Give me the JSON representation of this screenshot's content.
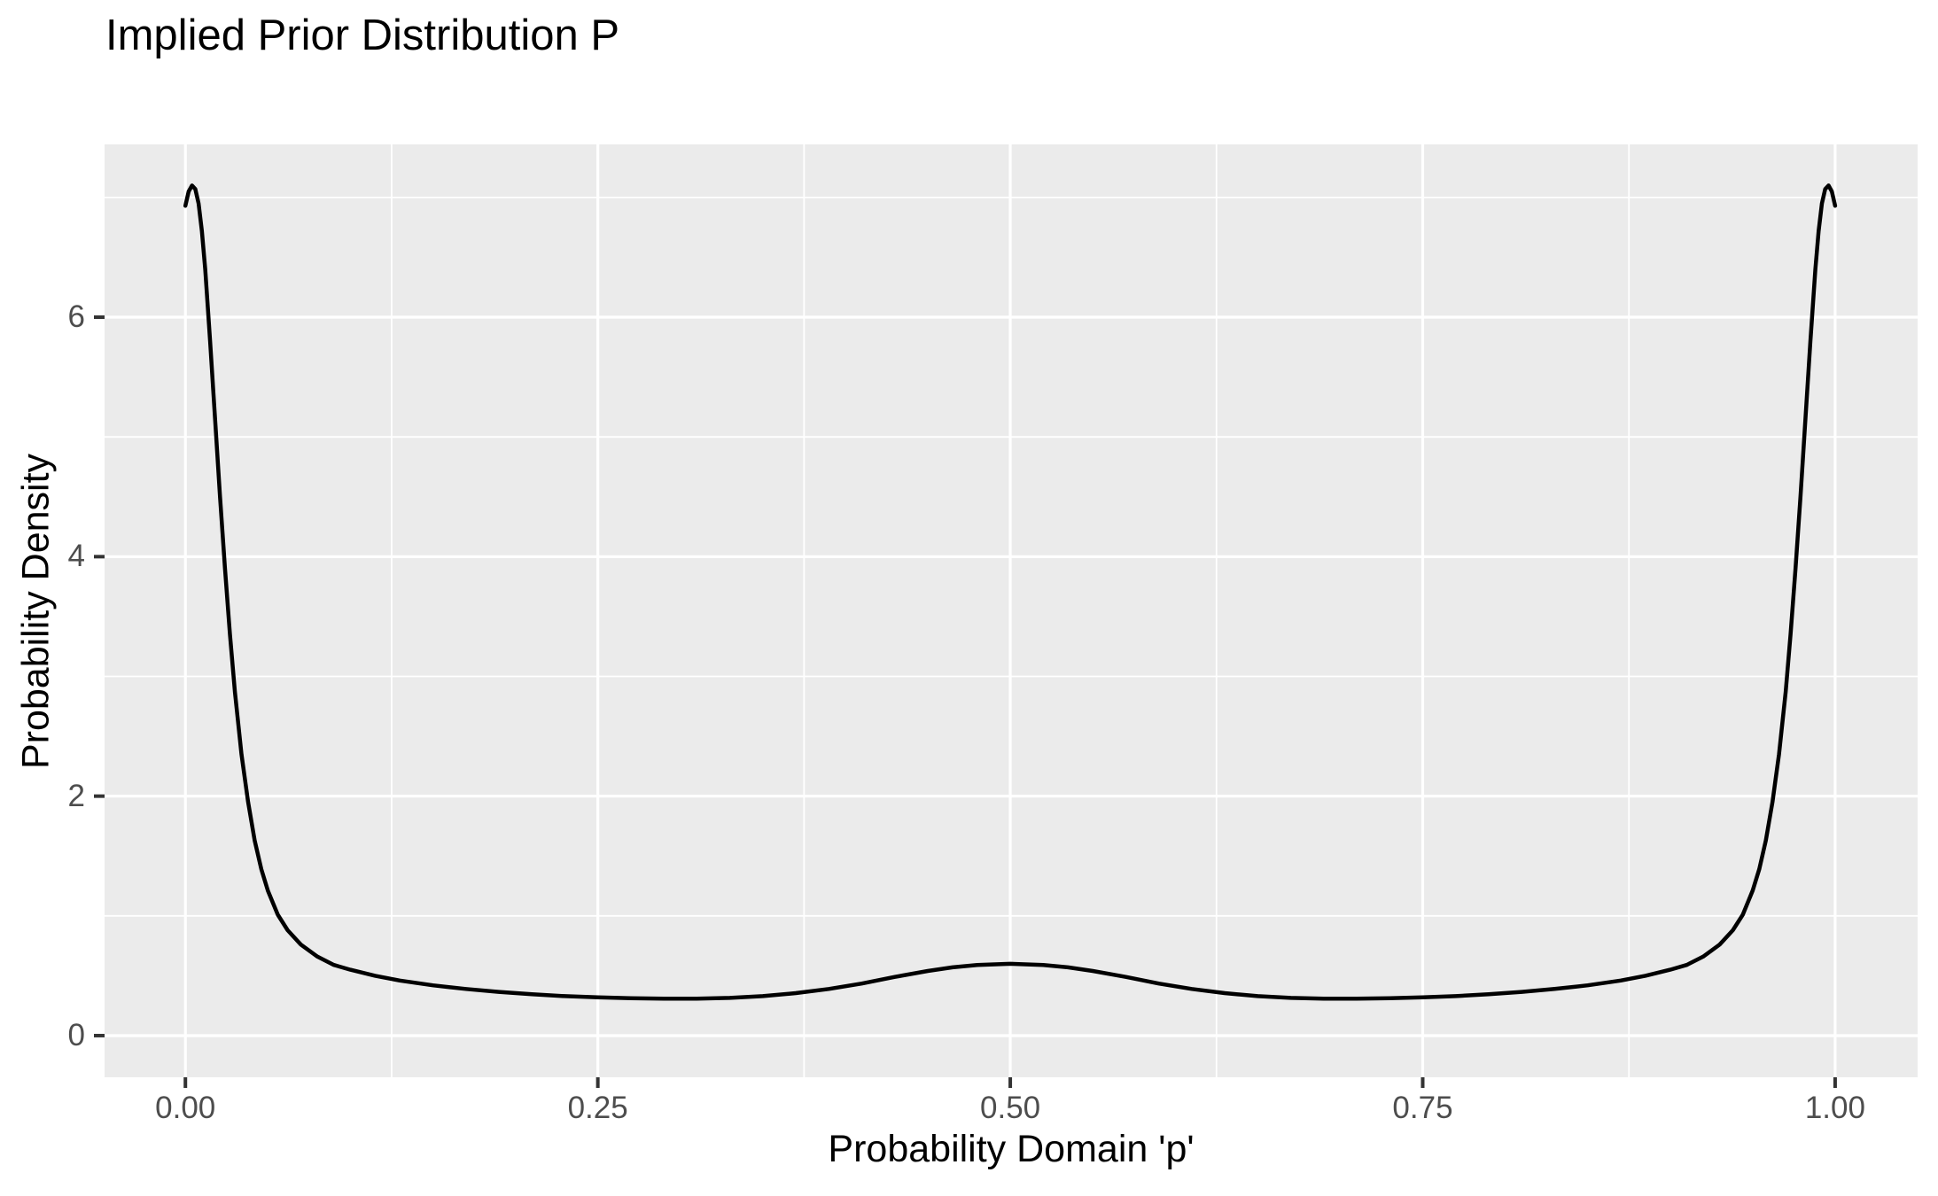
{
  "chart_data": {
    "type": "line",
    "title": "Implied Prior Distribution P",
    "xlabel": "Probability Domain 'p'",
    "ylabel": "Probability Density",
    "xlim": [
      -0.049,
      1.05
    ],
    "ylim": [
      -0.348,
      7.443
    ],
    "x_ticks": [
      0.0,
      0.25,
      0.5,
      0.75,
      1.0
    ],
    "x_tick_labels": [
      "0.00",
      "0.25",
      "0.50",
      "0.75",
      "1.00"
    ],
    "y_ticks": [
      0,
      2,
      4,
      6
    ],
    "y_tick_labels": [
      "0",
      "2",
      "4",
      "6"
    ],
    "x_minor": [
      0.125,
      0.375,
      0.625,
      0.875
    ],
    "y_minor": [
      1,
      3,
      5,
      7
    ],
    "grid": true,
    "legend": false,
    "series": [
      {
        "name": "density",
        "x": [
          0.0,
          0.002,
          0.004,
          0.006,
          0.008,
          0.01,
          0.012,
          0.015,
          0.018,
          0.021,
          0.024,
          0.027,
          0.03,
          0.034,
          0.038,
          0.042,
          0.046,
          0.05,
          0.056,
          0.062,
          0.07,
          0.08,
          0.09,
          0.1,
          0.115,
          0.13,
          0.15,
          0.17,
          0.19,
          0.21,
          0.23,
          0.25,
          0.27,
          0.29,
          0.31,
          0.33,
          0.35,
          0.37,
          0.39,
          0.41,
          0.43,
          0.45,
          0.465,
          0.48,
          0.5,
          0.52,
          0.535,
          0.55,
          0.57,
          0.59,
          0.61,
          0.63,
          0.65,
          0.67,
          0.69,
          0.71,
          0.73,
          0.75,
          0.77,
          0.79,
          0.81,
          0.83,
          0.85,
          0.87,
          0.885,
          0.9,
          0.91,
          0.92,
          0.93,
          0.938,
          0.944,
          0.95,
          0.954,
          0.958,
          0.962,
          0.966,
          0.97,
          0.973,
          0.976,
          0.979,
          0.982,
          0.985,
          0.988,
          0.99,
          0.992,
          0.994,
          0.996,
          0.998,
          1.0
        ],
        "y": [
          6.93,
          7.05,
          7.1,
          7.07,
          6.95,
          6.72,
          6.4,
          5.8,
          5.15,
          4.5,
          3.9,
          3.35,
          2.87,
          2.35,
          1.95,
          1.63,
          1.39,
          1.21,
          1.01,
          0.88,
          0.76,
          0.66,
          0.59,
          0.55,
          0.5,
          0.46,
          0.42,
          0.39,
          0.365,
          0.345,
          0.33,
          0.32,
          0.312,
          0.308,
          0.308,
          0.315,
          0.33,
          0.355,
          0.39,
          0.435,
          0.49,
          0.54,
          0.57,
          0.59,
          0.6,
          0.59,
          0.57,
          0.54,
          0.49,
          0.435,
          0.39,
          0.355,
          0.33,
          0.315,
          0.308,
          0.308,
          0.312,
          0.32,
          0.33,
          0.345,
          0.365,
          0.39,
          0.42,
          0.46,
          0.5,
          0.55,
          0.59,
          0.66,
          0.76,
          0.88,
          1.01,
          1.21,
          1.39,
          1.63,
          1.95,
          2.35,
          2.87,
          3.35,
          3.9,
          4.5,
          5.15,
          5.8,
          6.4,
          6.72,
          6.95,
          7.07,
          7.1,
          7.05,
          6.93
        ]
      }
    ],
    "colors": {
      "panel_bg": "#EBEBEB",
      "grid": "#FFFFFF",
      "line": "#000000",
      "tick": "#333333",
      "tick_label": "#4D4D4D",
      "title": "#000000"
    }
  }
}
